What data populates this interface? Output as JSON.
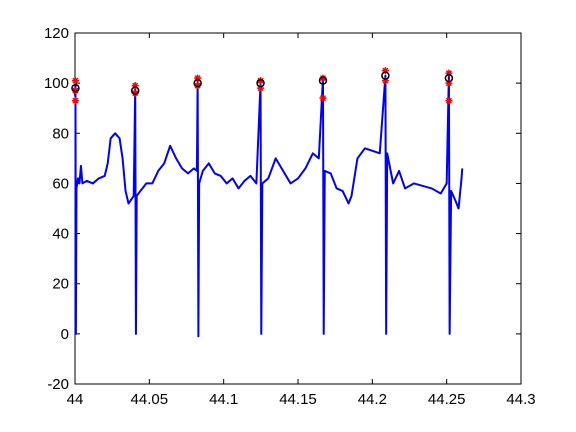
{
  "chart_data": {
    "type": "line",
    "xlim": [
      44,
      44.3
    ],
    "xticks": [
      44,
      44.05,
      44.1,
      44.15,
      44.2,
      44.25,
      44.3
    ],
    "ylim": [
      -20,
      120
    ],
    "yticks": [
      -20,
      0,
      20,
      40,
      60,
      80,
      100,
      120
    ],
    "grid": false,
    "series": [
      {
        "color": "#0000ff",
        "marker": "none",
        "x": [
          44.0,
          44.0003,
          44.0006,
          44.001,
          44.002,
          44.003,
          44.004,
          44.005,
          44.008,
          44.012,
          44.016,
          44.02,
          44.022,
          44.024,
          44.027,
          44.03,
          44.032,
          44.034,
          44.036,
          44.0395,
          44.0405,
          44.041,
          44.0415,
          44.044,
          44.048,
          44.052,
          44.056,
          44.06,
          44.064,
          44.068,
          44.072,
          44.076,
          44.08,
          44.082,
          44.0825,
          44.083,
          44.0835,
          44.086,
          44.09,
          44.094,
          44.098,
          44.102,
          44.106,
          44.11,
          44.114,
          44.118,
          44.122,
          44.1248,
          44.1253,
          44.126,
          44.13,
          44.135,
          44.14,
          44.145,
          44.15,
          44.155,
          44.16,
          44.164,
          44.1668,
          44.1673,
          44.168,
          44.172,
          44.176,
          44.18,
          44.184,
          44.186,
          44.19,
          44.195,
          44.2,
          44.205,
          44.2088,
          44.2093,
          44.21,
          44.214,
          44.218,
          44.222,
          44.228,
          44.234,
          44.24,
          44.246,
          44.25,
          44.2515,
          44.252,
          44.253,
          44.256,
          44.258,
          44.26,
          44.2605
        ],
        "values": [
          95,
          100,
          0,
          58,
          62,
          60,
          67,
          60,
          61,
          60,
          62,
          63,
          68,
          78,
          80,
          78,
          70,
          57,
          52,
          55,
          98,
          0,
          55,
          57,
          60,
          60,
          65,
          68,
          75,
          70,
          66,
          64,
          66,
          65,
          101,
          -1,
          60,
          65,
          68,
          64,
          63,
          60,
          62,
          58,
          61,
          63,
          60,
          100,
          0,
          60,
          62,
          70,
          65,
          60,
          62,
          66,
          72,
          70,
          102,
          0,
          65,
          64,
          58,
          57,
          52,
          55,
          70,
          74,
          73,
          72,
          103,
          0,
          72,
          60,
          65,
          58,
          60,
          59,
          58,
          56,
          60,
          104,
          0,
          57,
          53,
          50,
          62,
          66
        ]
      },
      {
        "color": "#ff0000",
        "marker": "star",
        "x": [
          44.0003,
          44.0003,
          44.0003,
          44.0405,
          44.0405,
          44.0825,
          44.0825,
          44.1248,
          44.1248,
          44.1668,
          44.1668,
          44.2088,
          44.2088,
          44.2515,
          44.2515,
          44.2515
        ],
        "values": [
          93,
          97,
          101,
          96,
          99,
          99,
          102,
          98,
          101,
          94,
          102,
          101,
          105,
          93,
          100,
          104
        ]
      },
      {
        "color": "#000000",
        "marker": "circle",
        "x": [
          44.0003,
          44.0405,
          44.0825,
          44.1248,
          44.1668,
          44.2088,
          44.2515
        ],
        "values": [
          98,
          97,
          100,
          100,
          101,
          103,
          102
        ]
      }
    ]
  }
}
